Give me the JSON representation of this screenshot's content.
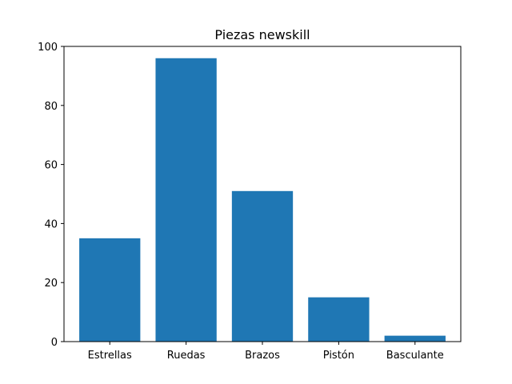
{
  "chart_data": {
    "type": "bar",
    "title": "Piezas newskill",
    "xlabel": "",
    "ylabel": "",
    "categories": [
      "Estrellas",
      "Ruedas",
      "Brazos",
      "Pistón",
      "Basculante"
    ],
    "values": [
      35,
      96,
      51,
      15,
      2
    ],
    "ylim": [
      0,
      100
    ],
    "yticks": [
      0,
      20,
      40,
      60,
      80,
      100
    ],
    "bar_color": "#1f77b4",
    "grid": false,
    "legend": "none"
  }
}
